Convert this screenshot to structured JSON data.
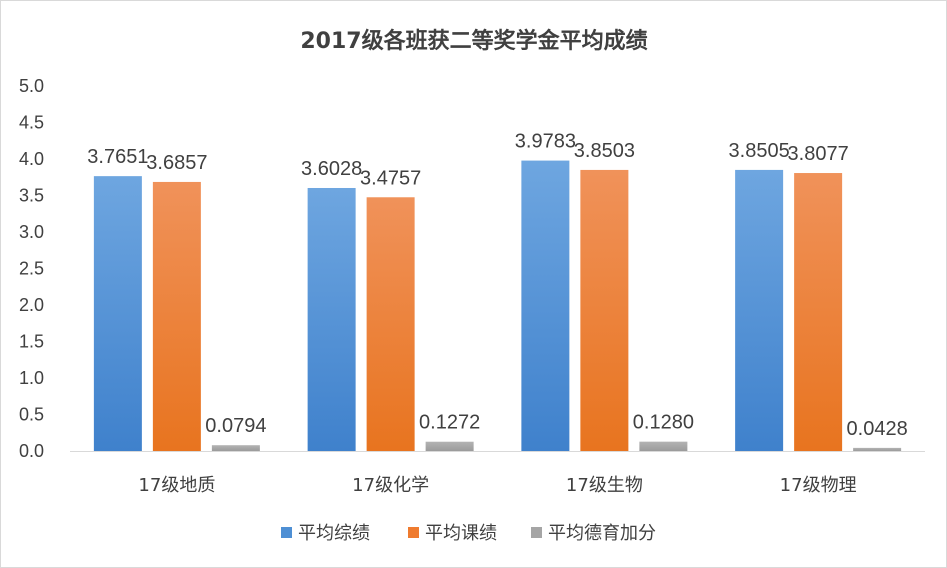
{
  "chart_data": {
    "type": "bar",
    "title": "2017级各班获二等奖学金平均成绩",
    "categories": [
      "17级地质",
      "17级化学",
      "17级生物",
      "17级物理"
    ],
    "series": [
      {
        "name": "平均综绩",
        "color": "#4e8fd4",
        "values": [
          3.7651,
          3.6028,
          3.9783,
          3.8505
        ],
        "labels": [
          "3.7651",
          "3.6028",
          "3.9783",
          "3.8505"
        ]
      },
      {
        "name": "平均课绩",
        "color": "#ef7b2f",
        "values": [
          3.6857,
          3.4757,
          3.8503,
          3.8077
        ],
        "labels": [
          "3.6857",
          "3.4757",
          "3.8503",
          "3.8077"
        ]
      },
      {
        "name": "平均德育加分",
        "color": "#a5a5a5",
        "values": [
          0.0794,
          0.1272,
          0.128,
          0.0428
        ],
        "labels": [
          "0.0794",
          "0.1272",
          "0.1280",
          "0.0428"
        ]
      }
    ],
    "ylim": [
      0,
      5
    ],
    "yticks": [
      "0.0",
      "0.5",
      "1.0",
      "1.5",
      "2.0",
      "2.5",
      "3.0",
      "3.5",
      "4.0",
      "4.5",
      "5.0"
    ],
    "xlabel": "",
    "ylabel": "",
    "grid": false,
    "legend_position": "bottom"
  }
}
